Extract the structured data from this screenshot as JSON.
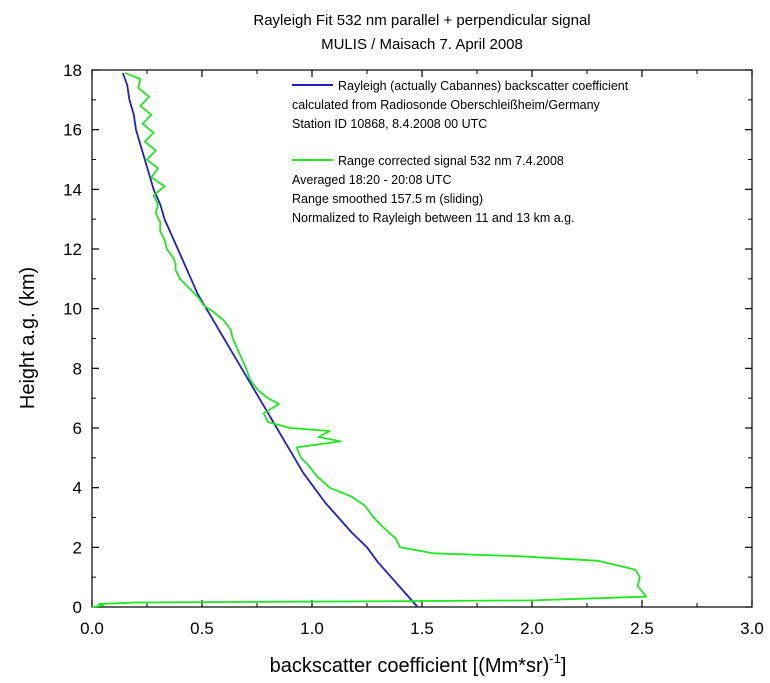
{
  "chart_data": {
    "type": "line",
    "title": "Rayleigh Fit 532 nm parallel + perpendicular signal",
    "subtitle": "MULIS / Maisach 7. April 2008",
    "xlabel": "backscatter coefficient [(Mm*sr)",
    "xlabel_sup": "-1",
    "xlabel_end": "]",
    "ylabel": "Height a.g. (km)",
    "xlim": [
      0.0,
      3.0
    ],
    "ylim": [
      0,
      18
    ],
    "xticks": [
      0.0,
      0.5,
      1.0,
      1.5,
      2.0,
      2.5,
      3.0
    ],
    "xtick_labels": [
      "0.0",
      "0.5",
      "1.0",
      "1.5",
      "2.0",
      "2.5",
      "3.0"
    ],
    "yticks": [
      0,
      2,
      4,
      6,
      8,
      10,
      12,
      14,
      16,
      18
    ],
    "ytick_labels": [
      "0",
      "2",
      "4",
      "6",
      "8",
      "10",
      "12",
      "14",
      "16",
      "18"
    ],
    "grid": false,
    "legend_position": "top-right",
    "series": [
      {
        "color": "#1f1fc8",
        "legend_lines": [
          "Rayleigh (actually Cabannes) backscatter coefficient",
          "calculated from Radiosonde Oberschleißheim/Germany",
          "Station ID 10868, 8.4.2008  00 UTC"
        ],
        "points": [
          [
            1.48,
            0.0
          ],
          [
            1.42,
            0.5
          ],
          [
            1.36,
            1.0
          ],
          [
            1.3,
            1.5
          ],
          [
            1.25,
            2.0
          ],
          [
            1.18,
            2.5
          ],
          [
            1.12,
            3.0
          ],
          [
            1.06,
            3.5
          ],
          [
            1.01,
            4.0
          ],
          [
            0.96,
            4.5
          ],
          [
            0.92,
            5.0
          ],
          [
            0.88,
            5.5
          ],
          [
            0.84,
            6.0
          ],
          [
            0.8,
            6.5
          ],
          [
            0.76,
            7.0
          ],
          [
            0.72,
            7.5
          ],
          [
            0.68,
            8.0
          ],
          [
            0.64,
            8.5
          ],
          [
            0.6,
            9.0
          ],
          [
            0.56,
            9.5
          ],
          [
            0.52,
            10.0
          ],
          [
            0.48,
            10.5
          ],
          [
            0.45,
            11.0
          ],
          [
            0.42,
            11.5
          ],
          [
            0.39,
            12.0
          ],
          [
            0.36,
            12.5
          ],
          [
            0.33,
            13.0
          ],
          [
            0.31,
            13.5
          ],
          [
            0.28,
            14.0
          ],
          [
            0.26,
            14.5
          ],
          [
            0.24,
            15.0
          ],
          [
            0.22,
            15.5
          ],
          [
            0.2,
            16.0
          ],
          [
            0.19,
            16.5
          ],
          [
            0.17,
            17.0
          ],
          [
            0.16,
            17.5
          ],
          [
            0.14,
            17.9
          ]
        ]
      },
      {
        "color": "#1ee81e",
        "legend_lines": [
          "Range corrected signal 532 nm  7.4.2008",
          "Averaged 18:20 - 20:08 UTC",
          "Range smoothed 157.5 m (sliding)",
          "Normalized to Rayleigh between 11 and 13 km a.g."
        ],
        "points": [
          [
            0.0,
            0.0
          ],
          [
            0.05,
            0.05
          ],
          [
            0.03,
            0.1
          ],
          [
            0.2,
            0.15
          ],
          [
            1.0,
            0.18
          ],
          [
            2.0,
            0.22
          ],
          [
            2.52,
            0.35
          ],
          [
            2.48,
            0.7
          ],
          [
            2.49,
            1.0
          ],
          [
            2.47,
            1.25
          ],
          [
            2.3,
            1.55
          ],
          [
            1.95,
            1.7
          ],
          [
            1.55,
            1.8
          ],
          [
            1.4,
            2.0
          ],
          [
            1.38,
            2.3
          ],
          [
            1.32,
            2.7
          ],
          [
            1.28,
            3.0
          ],
          [
            1.24,
            3.4
          ],
          [
            1.18,
            3.7
          ],
          [
            1.08,
            4.0
          ],
          [
            1.02,
            4.4
          ],
          [
            0.99,
            4.7
          ],
          [
            0.95,
            5.0
          ],
          [
            0.93,
            5.35
          ],
          [
            1.13,
            5.55
          ],
          [
            1.03,
            5.7
          ],
          [
            1.08,
            5.9
          ],
          [
            0.9,
            6.0
          ],
          [
            0.8,
            6.2
          ],
          [
            0.78,
            6.5
          ],
          [
            0.85,
            6.8
          ],
          [
            0.8,
            7.0
          ],
          [
            0.75,
            7.3
          ],
          [
            0.72,
            7.6
          ],
          [
            0.7,
            8.0
          ],
          [
            0.67,
            8.5
          ],
          [
            0.64,
            9.0
          ],
          [
            0.63,
            9.3
          ],
          [
            0.6,
            9.6
          ],
          [
            0.55,
            9.9
          ],
          [
            0.51,
            10.1
          ],
          [
            0.48,
            10.4
          ],
          [
            0.44,
            10.7
          ],
          [
            0.4,
            11.0
          ],
          [
            0.38,
            11.3
          ],
          [
            0.38,
            11.5
          ],
          [
            0.37,
            11.7
          ],
          [
            0.34,
            12.0
          ],
          [
            0.33,
            12.3
          ],
          [
            0.31,
            12.6
          ],
          [
            0.31,
            12.9
          ],
          [
            0.29,
            13.2
          ],
          [
            0.3,
            13.5
          ],
          [
            0.28,
            13.8
          ],
          [
            0.33,
            14.1
          ],
          [
            0.27,
            14.4
          ],
          [
            0.3,
            14.7
          ],
          [
            0.25,
            15.0
          ],
          [
            0.29,
            15.3
          ],
          [
            0.24,
            15.6
          ],
          [
            0.28,
            15.9
          ],
          [
            0.23,
            16.2
          ],
          [
            0.27,
            16.5
          ],
          [
            0.22,
            16.8
          ],
          [
            0.26,
            17.1
          ],
          [
            0.21,
            17.4
          ],
          [
            0.22,
            17.7
          ],
          [
            0.15,
            17.9
          ]
        ]
      }
    ]
  }
}
